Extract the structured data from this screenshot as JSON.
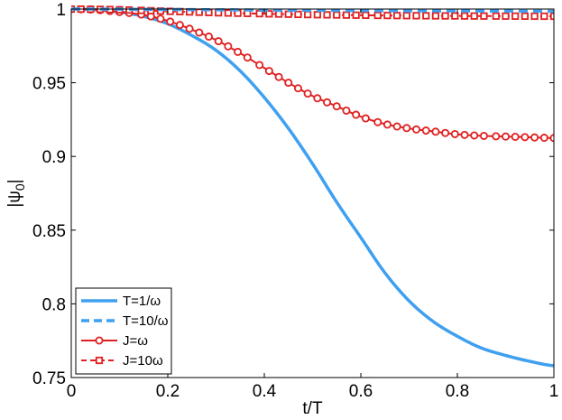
{
  "chart_data": {
    "type": "line",
    "title": "",
    "xlabel": "t/T",
    "ylabel": "|ψ",
    "ylabel_sub": "0",
    "xlim": [
      0,
      1
    ],
    "ylim": [
      0.75,
      1
    ],
    "x_ticks": [
      0,
      0.2,
      0.4,
      0.6,
      0.8,
      1
    ],
    "x_tick_labels": [
      "0",
      "0.2",
      "0.4",
      "0.6",
      "0.8",
      "1"
    ],
    "y_ticks": [
      0.75,
      0.8,
      0.85,
      0.9,
      0.95,
      1
    ],
    "y_tick_labels": [
      "0.75",
      "0.8",
      "0.85",
      "0.9",
      "0.95",
      "1"
    ],
    "grid": false,
    "legend_position": "bottom-left",
    "series": [
      {
        "name": "T=1/ω",
        "color": "#3fa0f0",
        "style": "solid",
        "marker": "none",
        "x": [
          0,
          0.05,
          0.1,
          0.15,
          0.2,
          0.25,
          0.3,
          0.35,
          0.4,
          0.45,
          0.5,
          0.55,
          0.6,
          0.65,
          0.7,
          0.75,
          0.8,
          0.85,
          0.9,
          0.95,
          1.0
        ],
        "y": [
          1.0,
          0.9995,
          0.998,
          0.995,
          0.99,
          0.982,
          0.972,
          0.958,
          0.94,
          0.919,
          0.895,
          0.869,
          0.845,
          0.821,
          0.802,
          0.788,
          0.778,
          0.77,
          0.765,
          0.761,
          0.758
        ]
      },
      {
        "name": "T=10/ω",
        "color": "#3fa0f0",
        "style": "dashed",
        "marker": "none",
        "x": [
          0,
          0.1,
          0.2,
          0.3,
          0.4,
          0.5,
          0.6,
          0.7,
          0.8,
          0.9,
          1.0
        ],
        "y": [
          1.0,
          0.9999,
          0.9997,
          0.9995,
          0.9993,
          0.9991,
          0.999,
          0.9988,
          0.9987,
          0.9986,
          0.9985
        ]
      },
      {
        "name": "J=ω",
        "color": "#e02020",
        "style": "solid",
        "marker": "circle",
        "x": [
          0,
          0.05,
          0.1,
          0.15,
          0.2,
          0.25,
          0.3,
          0.35,
          0.4,
          0.45,
          0.5,
          0.55,
          0.6,
          0.65,
          0.7,
          0.75,
          0.8,
          0.85,
          0.9,
          0.95,
          1.0
        ],
        "y": [
          1.0,
          0.9995,
          0.998,
          0.996,
          0.992,
          0.986,
          0.979,
          0.97,
          0.96,
          0.95,
          0.941,
          0.934,
          0.927,
          0.922,
          0.919,
          0.917,
          0.915,
          0.914,
          0.9135,
          0.913,
          0.9125
        ]
      },
      {
        "name": "J=10ω",
        "color": "#e02020",
        "style": "dashed",
        "marker": "square",
        "x": [
          0,
          0.1,
          0.2,
          0.3,
          0.4,
          0.5,
          0.6,
          0.7,
          0.8,
          0.9,
          1.0
        ],
        "y": [
          1.0,
          0.9995,
          0.9985,
          0.9975,
          0.9968,
          0.9962,
          0.9958,
          0.9955,
          0.9953,
          0.9952,
          0.9951
        ]
      }
    ]
  }
}
